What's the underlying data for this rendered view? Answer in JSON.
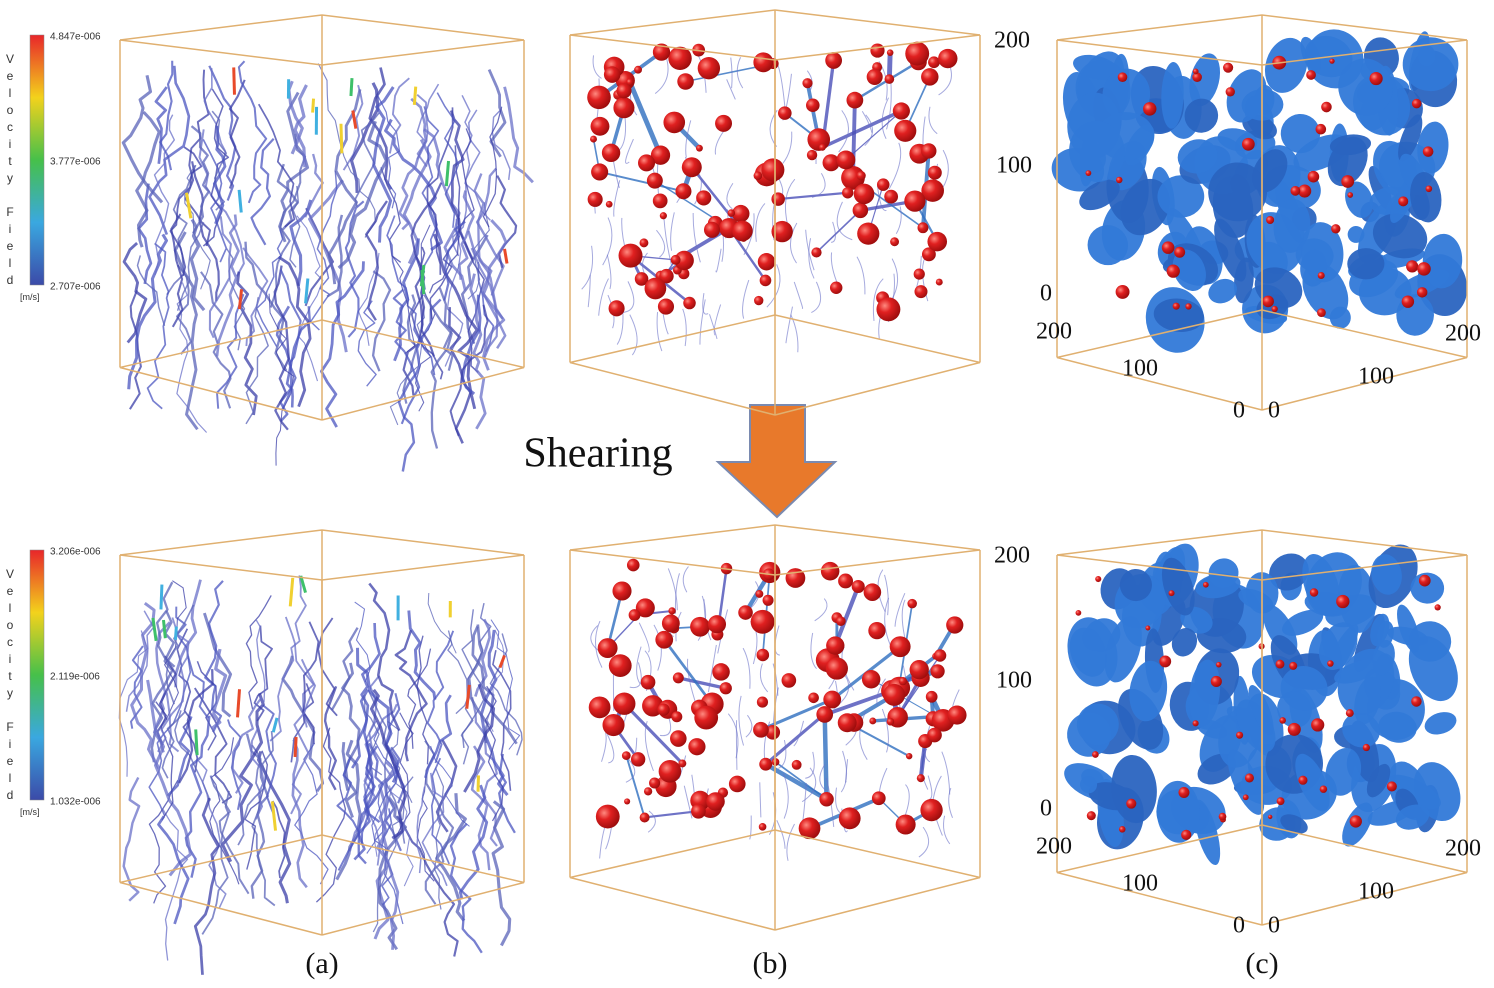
{
  "rows": [
    {
      "colorbar": {
        "title": "Velocity Field",
        "unit": "[m/s]",
        "ticks": [
          "4.847e-006",
          "3.777e-006",
          "2.707e-006"
        ]
      },
      "axes": [
        "200",
        "100",
        "0",
        "200",
        "100",
        "0",
        "0",
        "100",
        "200"
      ]
    },
    {
      "colorbar": {
        "title": "Velocity Field",
        "unit": "[m/s]",
        "ticks": [
          "3.206e-006",
          "2.119e-006",
          "1.032e-006"
        ]
      },
      "axes": [
        "200",
        "100",
        "0",
        "200",
        "100",
        "0",
        "0",
        "100",
        "200"
      ]
    }
  ],
  "arrow_label": "Shearing",
  "panel_labels": [
    "(a)",
    "(b)",
    "(c)"
  ]
}
